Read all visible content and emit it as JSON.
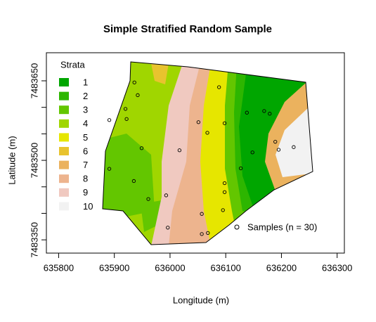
{
  "chart_data": {
    "type": "map",
    "title": "Simple Stratified Random Sample",
    "x_label": "Longitude (m)",
    "y_label": "Latitude (m)",
    "xlim": [
      635778,
      636313
    ],
    "ylim": [
      7483325,
      7483703
    ],
    "xticks": [
      635800,
      635900,
      636000,
      636100,
      636200,
      636300
    ],
    "yticks": [
      7483350,
      7483500,
      7483650
    ],
    "y_minor_ticks": [
      7483400,
      7483450,
      7483550,
      7483600
    ],
    "legend_title": "Strata",
    "strata": [
      {
        "label": "1",
        "color": "#00A600"
      },
      {
        "label": "2",
        "color": "#2DB600"
      },
      {
        "label": "3",
        "color": "#63C600"
      },
      {
        "label": "4",
        "color": "#A0D600"
      },
      {
        "label": "5",
        "color": "#E6E600"
      },
      {
        "label": "6",
        "color": "#E8C32E"
      },
      {
        "label": "7",
        "color": "#EBB25E"
      },
      {
        "label": "8",
        "color": "#EDB48E"
      },
      {
        "label": "9",
        "color": "#F0C9C0"
      },
      {
        "label": "10",
        "color": "#F2F2F2"
      }
    ],
    "samples": {
      "name": "Samples (n = 30)",
      "x": [
        635936,
        635942,
        635920,
        635891,
        635922,
        635949,
        635891,
        635935,
        635961,
        635996,
        636017,
        636051,
        636067,
        636098,
        636088,
        636138,
        636169,
        636179,
        636189,
        636195,
        636222,
        636148,
        636127,
        636098,
        636098,
        636095,
        636057,
        636068,
        636057,
        635993
      ],
      "y": [
        7483647,
        7483623,
        7483597,
        7483576,
        7483578,
        7483523,
        7483484,
        7483461,
        7483427,
        7483373,
        7483519,
        7483572,
        7483552,
        7483570,
        7483638,
        7483590,
        7483593,
        7483588,
        7483535,
        7483520,
        7483525,
        7483515,
        7483485,
        7483457,
        7483440,
        7483406,
        7483399,
        7483363,
        7483361,
        7483434
      ]
    }
  }
}
